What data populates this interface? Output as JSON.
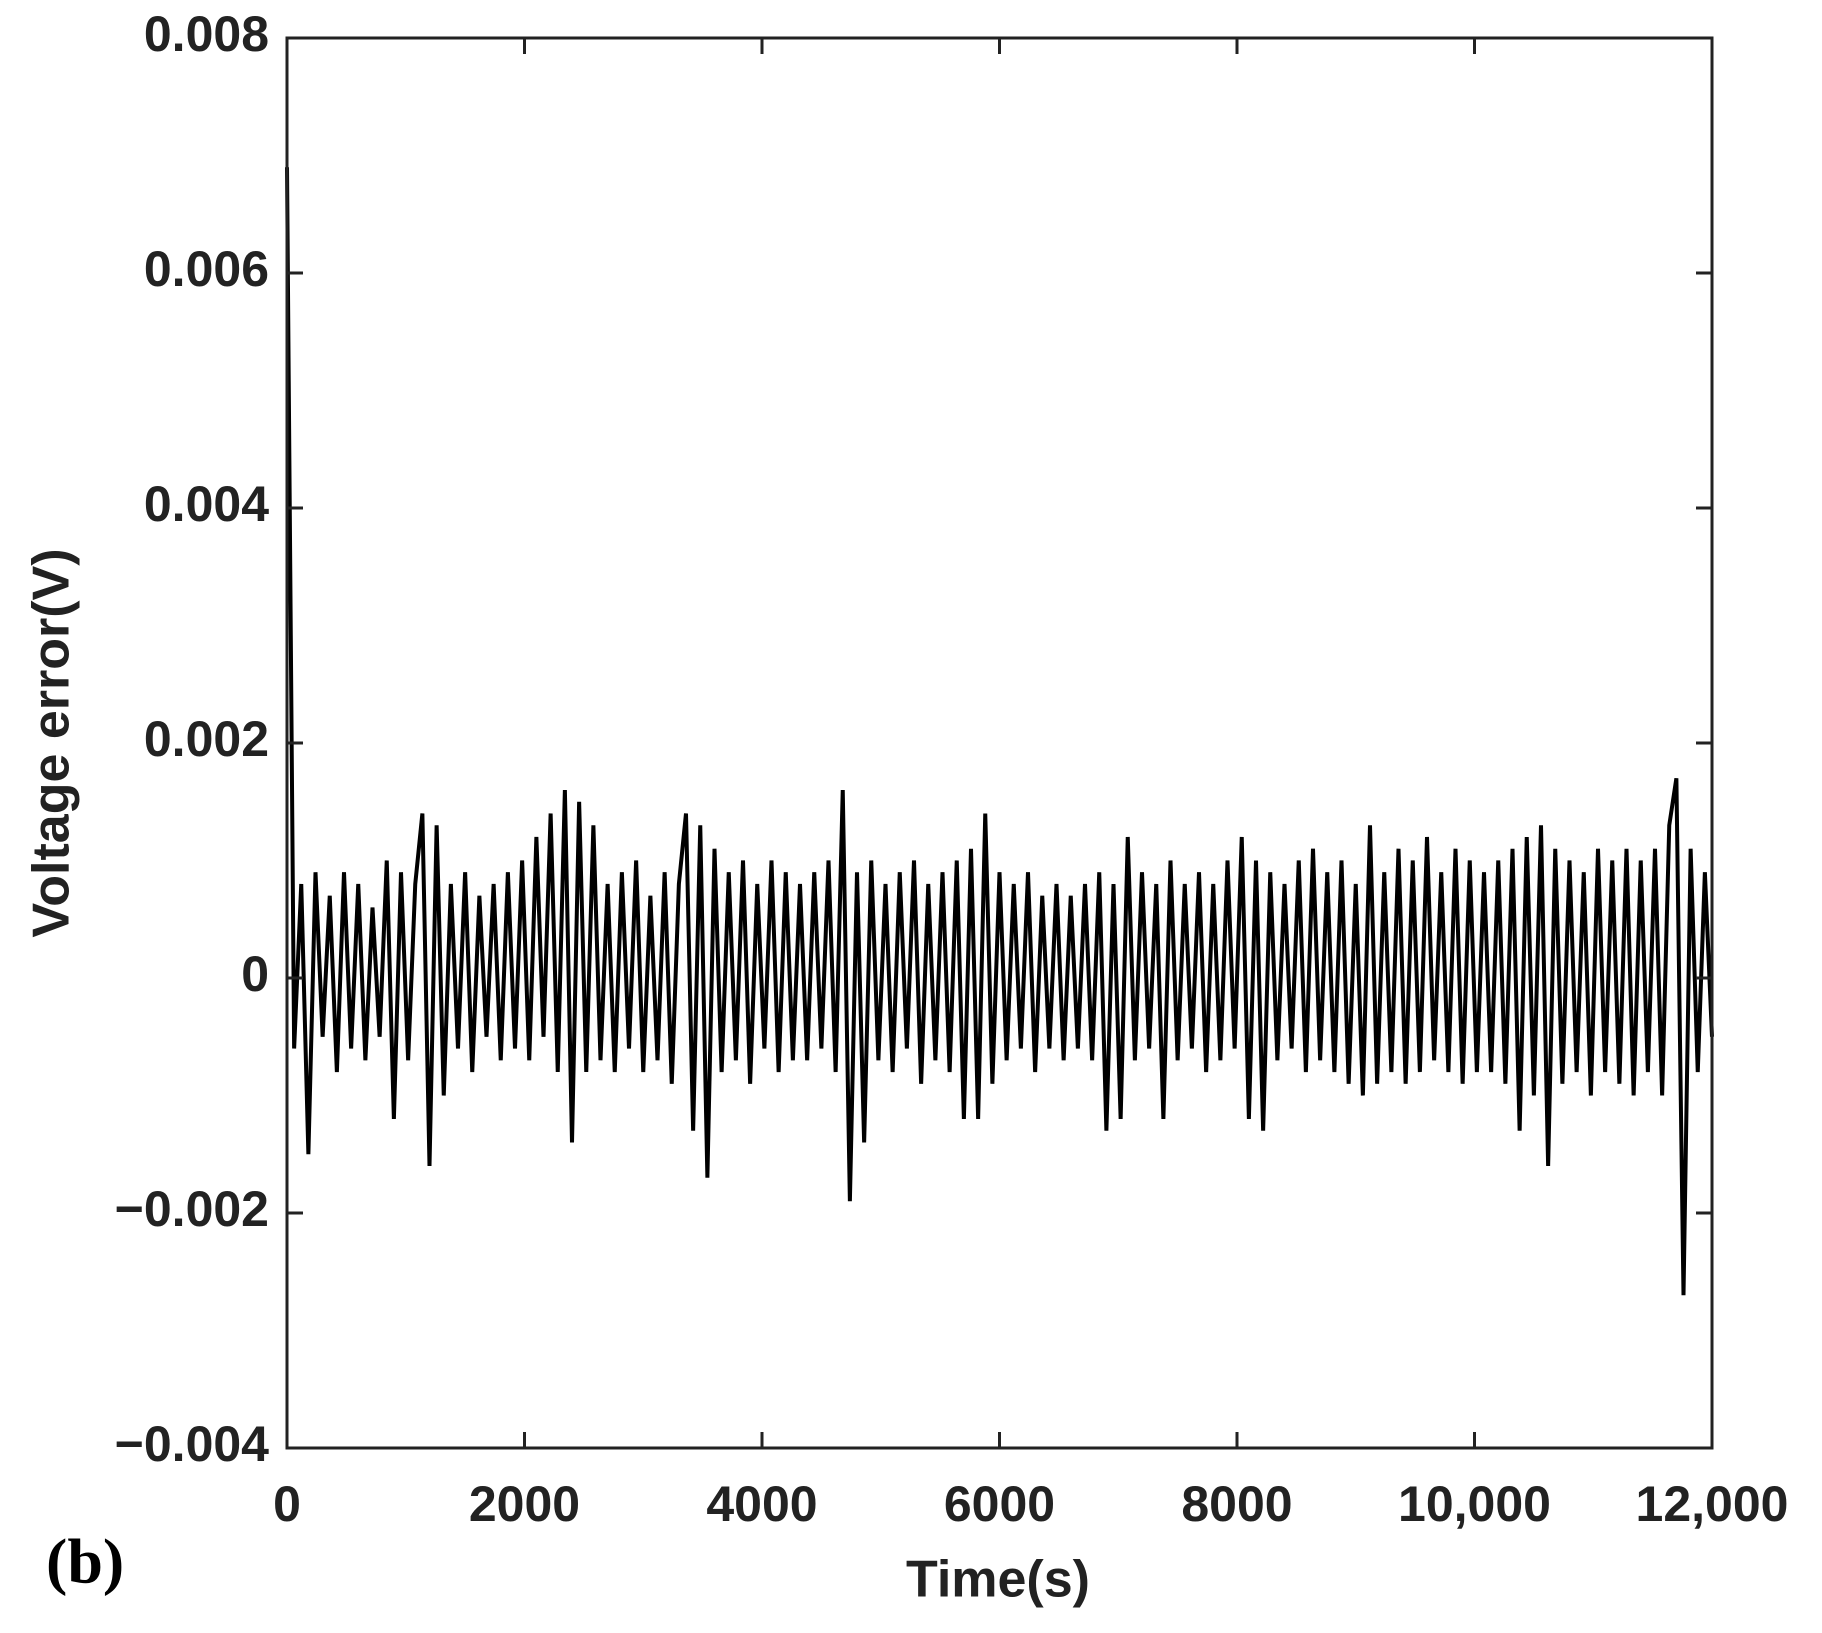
{
  "chart_data": {
    "type": "line",
    "title": "(b)",
    "xlabel": "Time(s)",
    "ylabel": "Voltage error(V)",
    "color": "#000000",
    "xlim": [
      0,
      12000
    ],
    "xticks": [
      0,
      2000,
      4000,
      6000,
      8000,
      {
        "value": 10000,
        "label": "10,000"
      },
      {
        "value": 12000,
        "label": "12,000"
      }
    ],
    "ylim": [
      -0.004,
      0.008
    ],
    "yticks": [
      {
        "value": -0.004,
        "label": "−0.004"
      },
      {
        "value": -0.002,
        "label": "−0.002"
      },
      0,
      0.002,
      0.004,
      0.006,
      0.008
    ],
    "x": [
      0,
      60,
      120,
      180,
      240,
      300,
      360,
      420,
      480,
      540,
      600,
      660,
      720,
      780,
      840,
      900,
      960,
      1020,
      1080,
      1140,
      1200,
      1260,
      1320,
      1380,
      1440,
      1500,
      1560,
      1620,
      1680,
      1740,
      1800,
      1860,
      1920,
      1980,
      2040,
      2100,
      2160,
      2220,
      2280,
      2340,
      2400,
      2460,
      2520,
      2580,
      2640,
      2700,
      2760,
      2820,
      2880,
      2940,
      3000,
      3060,
      3120,
      3180,
      3240,
      3300,
      3360,
      3420,
      3480,
      3540,
      3600,
      3660,
      3720,
      3780,
      3840,
      3900,
      3960,
      4020,
      4080,
      4140,
      4200,
      4260,
      4320,
      4380,
      4440,
      4500,
      4560,
      4620,
      4680,
      4740,
      4800,
      4860,
      4920,
      4980,
      5040,
      5100,
      5160,
      5220,
      5280,
      5340,
      5400,
      5460,
      5520,
      5580,
      5640,
      5700,
      5760,
      5820,
      5880,
      5940,
      6000,
      6060,
      6120,
      6180,
      6240,
      6300,
      6360,
      6420,
      6480,
      6540,
      6600,
      6660,
      6720,
      6780,
      6840,
      6900,
      6960,
      7020,
      7080,
      7140,
      7200,
      7260,
      7320,
      7380,
      7440,
      7500,
      7560,
      7620,
      7680,
      7740,
      7800,
      7860,
      7920,
      7980,
      8040,
      8100,
      8160,
      8220,
      8280,
      8340,
      8400,
      8460,
      8520,
      8580,
      8640,
      8700,
      8760,
      8820,
      8880,
      8940,
      9000,
      9060,
      9120,
      9180,
      9240,
      9300,
      9360,
      9420,
      9480,
      9540,
      9600,
      9660,
      9720,
      9780,
      9840,
      9900,
      9960,
      10020,
      10080,
      10140,
      10200,
      10260,
      10320,
      10380,
      10440,
      10500,
      10560,
      10620,
      10680,
      10740,
      10800,
      10860,
      10920,
      10980,
      11040,
      11100,
      11160,
      11220,
      11280,
      11340,
      11400,
      11460,
      11520,
      11580,
      11640,
      11700,
      11760,
      11820,
      11880,
      11940,
      12000
    ],
    "values": [
      0.0069,
      -0.0006,
      0.0008,
      -0.0015,
      0.0009,
      -0.0005,
      0.0007,
      -0.0008,
      0.0009,
      -0.0006,
      0.0008,
      -0.0007,
      0.0006,
      -0.0005,
      0.001,
      -0.0012,
      0.0009,
      -0.0007,
      0.0008,
      0.0014,
      -0.0016,
      0.0013,
      -0.001,
      0.0008,
      -0.0006,
      0.0009,
      -0.0008,
      0.0007,
      -0.0005,
      0.0008,
      -0.0007,
      0.0009,
      -0.0006,
      0.001,
      -0.0007,
      0.0012,
      -0.0005,
      0.0014,
      -0.0008,
      0.0016,
      -0.0014,
      0.0015,
      -0.0008,
      0.0013,
      -0.0007,
      0.0008,
      -0.0008,
      0.0009,
      -0.0006,
      0.001,
      -0.0008,
      0.0007,
      -0.0007,
      0.0009,
      -0.0009,
      0.0008,
      0.0014,
      -0.0013,
      0.0013,
      -0.0017,
      0.0011,
      -0.0008,
      0.0009,
      -0.0007,
      0.001,
      -0.0009,
      0.0008,
      -0.0006,
      0.001,
      -0.0008,
      0.0009,
      -0.0007,
      0.0008,
      -0.0007,
      0.0009,
      -0.0006,
      0.001,
      -0.0008,
      0.0016,
      -0.0019,
      0.0009,
      -0.0014,
      0.001,
      -0.0007,
      0.0008,
      -0.0008,
      0.0009,
      -0.0006,
      0.001,
      -0.0009,
      0.0008,
      -0.0007,
      0.0009,
      -0.0008,
      0.001,
      -0.0012,
      0.0011,
      -0.0012,
      0.0014,
      -0.0009,
      0.0009,
      -0.0007,
      0.0008,
      -0.0006,
      0.0009,
      -0.0008,
      0.0007,
      -0.0006,
      0.0008,
      -0.0007,
      0.0007,
      -0.0006,
      0.0008,
      -0.0007,
      0.0009,
      -0.0013,
      0.0008,
      -0.0012,
      0.0012,
      -0.0007,
      0.0009,
      -0.0006,
      0.0008,
      -0.0012,
      0.001,
      -0.0007,
      0.0008,
      -0.0006,
      0.0009,
      -0.0008,
      0.0008,
      -0.0007,
      0.001,
      -0.0006,
      0.0012,
      -0.0012,
      0.001,
      -0.0013,
      0.0009,
      -0.0007,
      0.0008,
      -0.0006,
      0.001,
      -0.0008,
      0.0011,
      -0.0007,
      0.0009,
      -0.0008,
      0.001,
      -0.0009,
      0.0008,
      -0.001,
      0.0013,
      -0.0009,
      0.0009,
      -0.0008,
      0.0011,
      -0.0009,
      0.001,
      -0.0008,
      0.0012,
      -0.0007,
      0.0009,
      -0.0008,
      0.0011,
      -0.0009,
      0.001,
      -0.0008,
      0.0009,
      -0.0008,
      0.001,
      -0.0009,
      0.0011,
      -0.0013,
      0.0012,
      -0.001,
      0.0013,
      -0.0016,
      0.0011,
      -0.0009,
      0.001,
      -0.0008,
      0.0009,
      -0.001,
      0.0011,
      -0.0008,
      0.001,
      -0.0009,
      0.0011,
      -0.001,
      0.001,
      -0.0008,
      0.0011,
      -0.001,
      0.0013,
      0.0017,
      -0.0027,
      0.0011,
      -0.0008,
      0.0009,
      -0.0005
    ]
  }
}
